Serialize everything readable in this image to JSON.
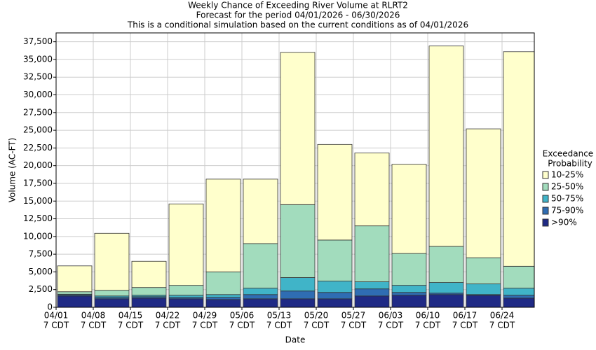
{
  "chart_data": {
    "type": "stacked-bar",
    "title": "Weekly Chance of Exceeding River Volume at RLRT2",
    "subtitle": "Forecast for the period 04/01/2026 - 06/30/2026",
    "note": "This is a conditional simulation based on the current conditions as of 04/01/2026",
    "y_label": "Volume (AC-FT)",
    "x_label": "Date",
    "legend_title": [
      "Exceedance",
      "Probability"
    ],
    "categories": [
      [
        "04/01",
        "7 CDT"
      ],
      [
        "04/08",
        "7 CDT"
      ],
      [
        "04/15",
        "7 CDT"
      ],
      [
        "04/22",
        "7 CDT"
      ],
      [
        "04/29",
        "7 CDT"
      ],
      [
        "05/06",
        "7 CDT"
      ],
      [
        "05/13",
        "7 CDT"
      ],
      [
        "05/20",
        "7 CDT"
      ],
      [
        "05/27",
        "7 CDT"
      ],
      [
        "06/03",
        "7 CDT"
      ],
      [
        "06/10",
        "7 CDT"
      ],
      [
        "06/17",
        "7 CDT"
      ],
      [
        "06/24",
        "7 CDT"
      ]
    ],
    "series": [
      {
        "name": ">90%",
        "color": "#1f2a85",
        "values": [
          1600,
          1200,
          1300,
          1200,
          1100,
          1200,
          1200,
          1200,
          1600,
          1700,
          1800,
          1700,
          1300
        ]
      },
      {
        "name": "75-90%",
        "color": "#2f6db3",
        "values": [
          150,
          200,
          200,
          200,
          300,
          600,
          1100,
          900,
          1000,
          400,
          200,
          100,
          400
        ]
      },
      {
        "name": "50-75%",
        "color": "#40b4c8",
        "values": [
          100,
          200,
          200,
          300,
          400,
          900,
          1900,
          1600,
          1000,
          1000,
          1500,
          1500,
          1000
        ]
      },
      {
        "name": "25-50%",
        "color": "#a2dcbd",
        "values": [
          350,
          800,
          1100,
          1400,
          3200,
          6300,
          10300,
          5800,
          7900,
          4500,
          5100,
          3700,
          3100
        ]
      },
      {
        "name": "10-25%",
        "color": "#ffffcc",
        "values": [
          3650,
          8050,
          3700,
          11500,
          13100,
          9100,
          21500,
          13500,
          10300,
          12600,
          28300,
          18200,
          30300
        ]
      }
    ],
    "ylim": [
      0,
      38750
    ],
    "yticks": [
      0,
      {
        "value": 2500,
        "label": "2,500"
      },
      {
        "value": 5000,
        "label": "5,000"
      },
      {
        "value": 7500,
        "label": "7,500"
      },
      {
        "value": 10000,
        "label": "10,000"
      },
      {
        "value": 12500,
        "label": "12,500"
      },
      {
        "value": 15000,
        "label": "15,000"
      },
      {
        "value": 17500,
        "label": "17,500"
      },
      {
        "value": 20000,
        "label": "20,000"
      },
      {
        "value": 22500,
        "label": "22,500"
      },
      {
        "value": 25000,
        "label": "25,000"
      },
      {
        "value": 27500,
        "label": "27,500"
      },
      {
        "value": 30000,
        "label": "30,000"
      },
      {
        "value": 32500,
        "label": "32,500"
      },
      {
        "value": 35000,
        "label": "35,000"
      },
      {
        "value": 37500,
        "label": "37,500"
      }
    ],
    "grid": true
  }
}
